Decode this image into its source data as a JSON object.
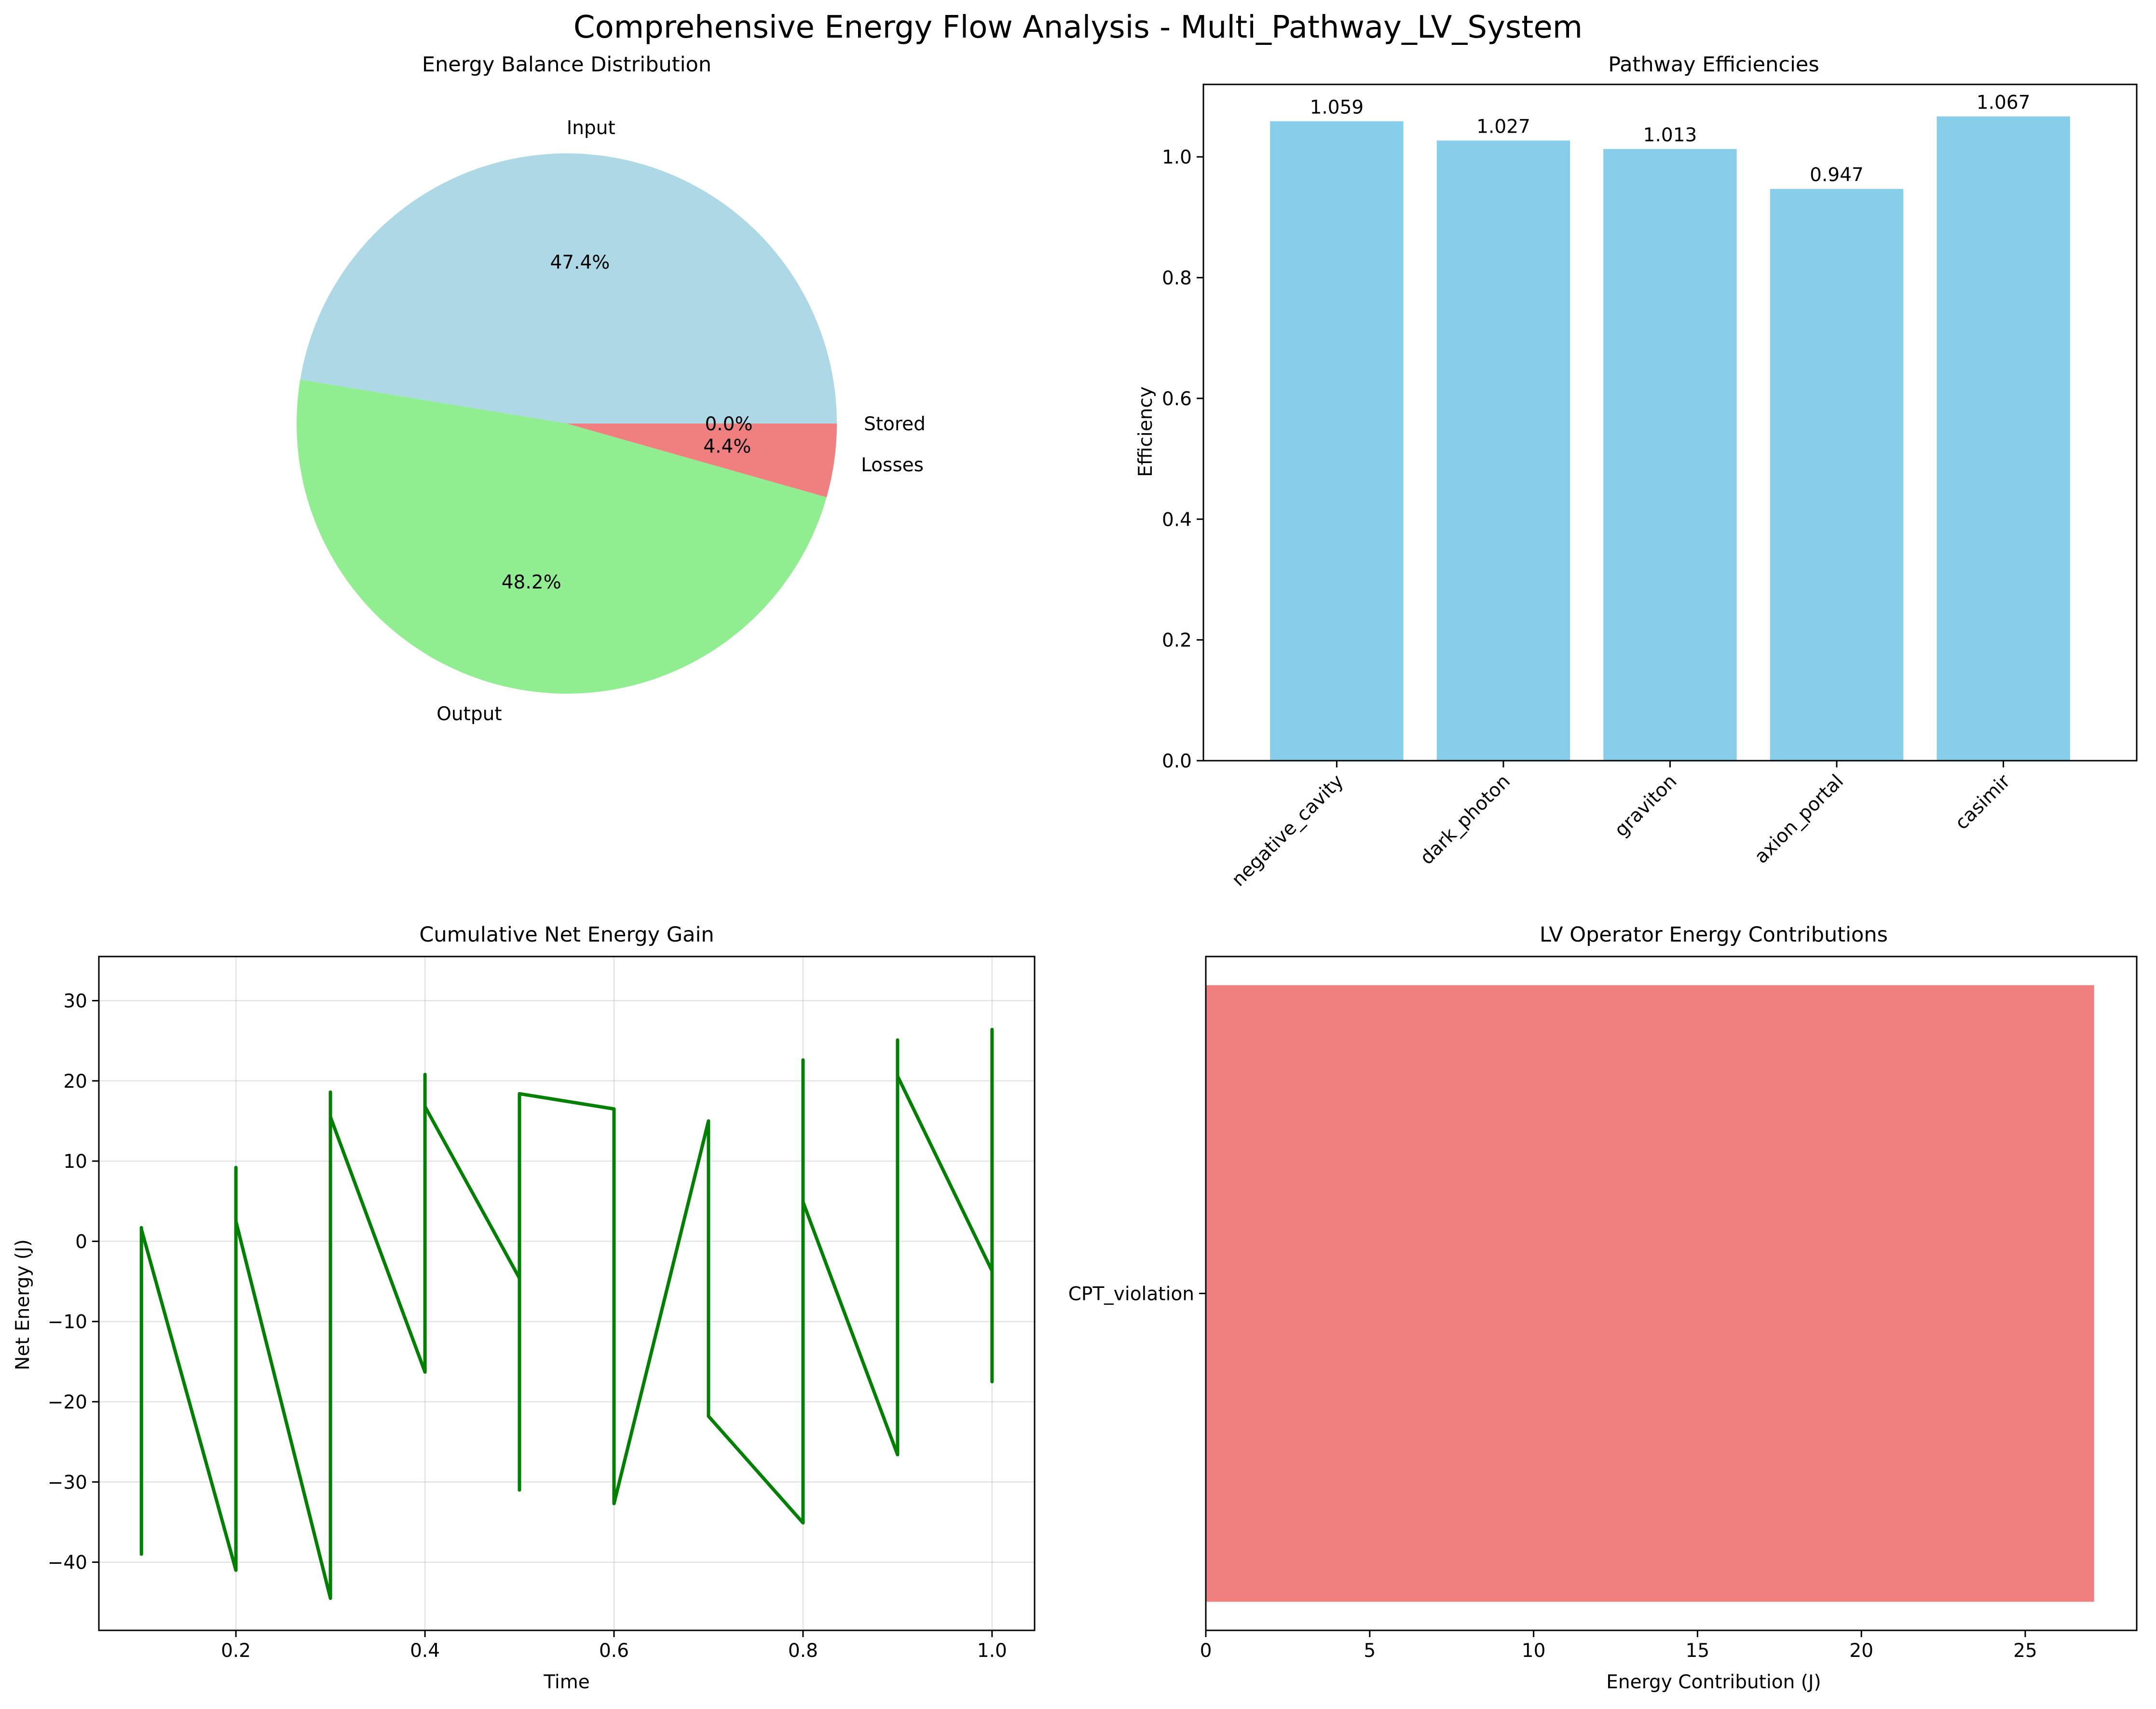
{
  "figure": {
    "title": "Comprehensive Energy Flow Analysis - Multi_Pathway_LV_System"
  },
  "chart_data": [
    {
      "type": "pie",
      "title": "Energy Balance Distribution",
      "labels": [
        "Input",
        "Output",
        "Losses",
        "Stored"
      ],
      "values": [
        47.4,
        48.2,
        4.4,
        0.0
      ],
      "pct_labels": [
        "47.4%",
        "48.2%",
        "4.4%",
        "0.0%"
      ],
      "colors": [
        "#add8e6",
        "#90ee90",
        "#f08080",
        "#ffffe0"
      ]
    },
    {
      "type": "bar",
      "title": "Pathway Efficiencies",
      "xlabel": "",
      "ylabel": "Efficiency",
      "categories": [
        "negative_cavity",
        "dark_photon",
        "graviton",
        "axion_portal",
        "casimir"
      ],
      "values": [
        1.059,
        1.027,
        1.013,
        0.947,
        1.067
      ],
      "value_labels": [
        "1.059",
        "1.027",
        "1.013",
        "0.947",
        "1.067"
      ],
      "ylim": [
        0,
        1.12
      ],
      "yticks": [
        0.0,
        0.2,
        0.4,
        0.6,
        0.8,
        1.0
      ],
      "ytick_labels": [
        "0.0",
        "0.2",
        "0.4",
        "0.6",
        "0.8",
        "1.0"
      ],
      "color": "#87ceeb",
      "grid": false
    },
    {
      "type": "line",
      "title": "Cumulative Net Energy Gain",
      "xlabel": "Time",
      "ylabel": "Net Energy (J)",
      "xlim": [
        0.055,
        1.045
      ],
      "ylim": [
        -48.5,
        35.5
      ],
      "xticks": [
        0.2,
        0.4,
        0.6,
        0.8,
        1.0
      ],
      "xtick_labels": [
        "0.2",
        "0.4",
        "0.6",
        "0.8",
        "1.0"
      ],
      "yticks": [
        -40,
        -30,
        -20,
        -10,
        0,
        10,
        20,
        30
      ],
      "ytick_labels": [
        "−40",
        "−30",
        "−20",
        "−10",
        "0",
        "10",
        "20",
        "30"
      ],
      "grid": true,
      "color": "#008000",
      "series": [
        {
          "x": [
            0.1,
            0.1,
            0.1,
            0.2,
            0.2,
            0.2,
            0.3,
            0.3,
            0.3,
            0.4,
            0.4,
            0.4,
            0.5,
            0.5,
            0.5,
            0.6,
            0.6,
            0.6,
            0.7,
            0.7,
            0.7,
            0.8,
            0.8,
            0.8,
            0.9,
            0.9,
            0.9,
            1.0,
            1.0,
            1.0
          ],
          "y": [
            -39,
            1.7,
            1.5,
            -41,
            9.2,
            2.5,
            -44.5,
            18.6,
            15.5,
            -16.3,
            20.8,
            16.8,
            -4.6,
            -31.0,
            18.4,
            16.5,
            -6.8,
            -32.7,
            15.0,
            7.8,
            -21.8,
            -35.1,
            22.6,
            4.9,
            -26.6,
            25.1,
            20.6,
            -3.7,
            -17.5,
            26.4
          ]
        }
      ]
    },
    {
      "type": "bar",
      "orientation": "horizontal",
      "title": "LV Operator Energy Contributions",
      "xlabel": "Energy Contribution (J)",
      "ylabel": "",
      "categories": [
        "CPT_violation"
      ],
      "values": [
        27.1
      ],
      "xlim": [
        0,
        28.4
      ],
      "xticks": [
        0,
        5,
        10,
        15,
        20,
        25
      ],
      "xtick_labels": [
        "0",
        "5",
        "10",
        "15",
        "20",
        "25"
      ],
      "color": "#f08080",
      "grid": false
    }
  ]
}
